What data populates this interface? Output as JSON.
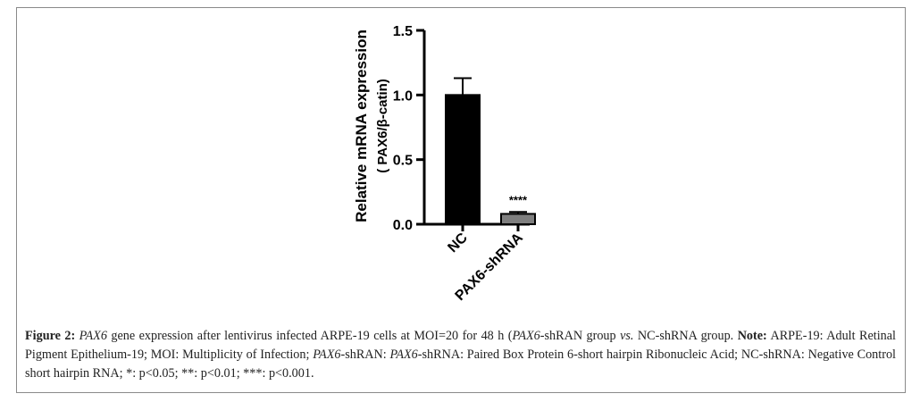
{
  "chart_data": {
    "type": "bar",
    "categories": [
      "NC",
      "PAX6-shRNA"
    ],
    "values": [
      1.0,
      0.08
    ],
    "error": [
      0.13,
      0.015
    ],
    "annotations": [
      "",
      "****"
    ],
    "ylabel_line1": "Relative mRNA expression",
    "ylabel_line2": "( PAX6/β-catin)",
    "ylim": [
      0,
      1.5
    ],
    "yticks": [
      0.0,
      0.5,
      1.0,
      1.5
    ],
    "ytick_labels": [
      "0.0",
      "0.5",
      "1.0",
      "1.5"
    ],
    "grid": false,
    "colors": {
      "NC": "#000000",
      "PAX6-shRNA": "#7f7f7f"
    }
  },
  "caption": {
    "label": "Figure 2:",
    "part1_italic": "PAX6",
    "part2": " gene expression after lentivirus infected ARPE-19 cells at MOI=20 for 48 h (",
    "part3_italic": "PAX6",
    "part4": "-shRAN group ",
    "part5_italic": "vs.",
    "part6": " NC-shRNA group. ",
    "note_label": "Note:",
    "part7": " ARPE-19: Adult Retinal Pigment Epithelium-19; MOI: Multiplicity of Infection; ",
    "part8_italic": "PAX6",
    "part9": "-shRAN: ",
    "part10_italic": "PAX6",
    "part11": "-shRNA: Paired Box Protein 6-short hairpin Ribonucleic Acid; NC-shRNA: Negative Control short hairpin RNA; *: p<0.05; **: p<0.01; ***: p<0.001."
  }
}
